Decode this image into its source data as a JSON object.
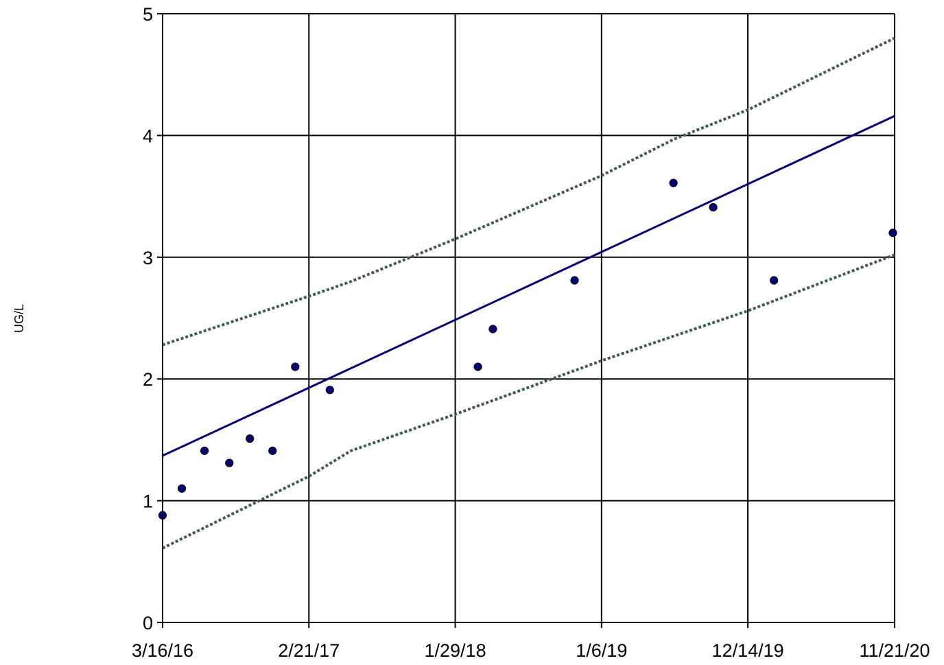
{
  "chart_data": {
    "type": "scatter",
    "title": "",
    "xlabel": "",
    "ylabel": "UG/L",
    "x_type": "date",
    "xlim": [
      "2016-03-16",
      "2020-11-21"
    ],
    "ylim": [
      0,
      5
    ],
    "x_ticks": [
      {
        "date": "2016-03-16",
        "label": "3/16/16"
      },
      {
        "date": "2017-02-21",
        "label": "2/21/17"
      },
      {
        "date": "2018-01-29",
        "label": "1/29/18"
      },
      {
        "date": "2019-01-06",
        "label": "1/6/19"
      },
      {
        "date": "2019-12-14",
        "label": "12/14/19"
      },
      {
        "date": "2020-11-21",
        "label": "11/21/20"
      }
    ],
    "y_ticks": [
      0,
      1,
      2,
      3,
      4,
      5
    ],
    "grid": true,
    "legend": "none",
    "series": [
      {
        "kind": "points",
        "color": "#00007a",
        "points": [
          {
            "x": "2016-03-16",
            "y": 0.88
          },
          {
            "x": "2016-04-30",
            "y": 1.1
          },
          {
            "x": "2016-06-22",
            "y": 1.41
          },
          {
            "x": "2016-08-19",
            "y": 1.31
          },
          {
            "x": "2016-10-06",
            "y": 1.51
          },
          {
            "x": "2016-11-28",
            "y": 1.41
          },
          {
            "x": "2017-01-20",
            "y": 2.1
          },
          {
            "x": "2017-04-11",
            "y": 1.91
          },
          {
            "x": "2018-03-23",
            "y": 2.1
          },
          {
            "x": "2018-04-27",
            "y": 2.41
          },
          {
            "x": "2018-11-04",
            "y": 2.81
          },
          {
            "x": "2019-06-23",
            "y": 3.61
          },
          {
            "x": "2019-09-24",
            "y": 3.41
          },
          {
            "x": "2020-02-13",
            "y": 2.81
          },
          {
            "x": "2020-11-17",
            "y": 3.2
          }
        ]
      },
      {
        "kind": "line",
        "style": "solid",
        "color": "#000080",
        "points": [
          {
            "x": "2016-03-16",
            "y": 1.37
          },
          {
            "x": "2020-11-21",
            "y": 4.16
          }
        ]
      },
      {
        "kind": "line",
        "style": "dotted",
        "color": "#3f5a5a",
        "points": [
          {
            "x": "2016-03-16",
            "y": 2.28
          },
          {
            "x": "2017-02-21",
            "y": 2.68
          },
          {
            "x": "2017-05-30",
            "y": 2.8
          },
          {
            "x": "2018-01-29",
            "y": 3.15
          },
          {
            "x": "2019-01-06",
            "y": 3.67
          },
          {
            "x": "2019-06-25",
            "y": 3.97
          },
          {
            "x": "2019-12-14",
            "y": 4.21
          },
          {
            "x": "2020-11-21",
            "y": 4.8
          }
        ]
      },
      {
        "kind": "line",
        "style": "dotted",
        "color": "#3f5a5a",
        "points": [
          {
            "x": "2016-03-16",
            "y": 0.61
          },
          {
            "x": "2017-02-21",
            "y": 1.2
          },
          {
            "x": "2017-05-30",
            "y": 1.41
          },
          {
            "x": "2018-01-29",
            "y": 1.71
          },
          {
            "x": "2019-01-06",
            "y": 2.15
          },
          {
            "x": "2019-12-14",
            "y": 2.56
          },
          {
            "x": "2020-11-21",
            "y": 3.02
          }
        ]
      }
    ]
  }
}
